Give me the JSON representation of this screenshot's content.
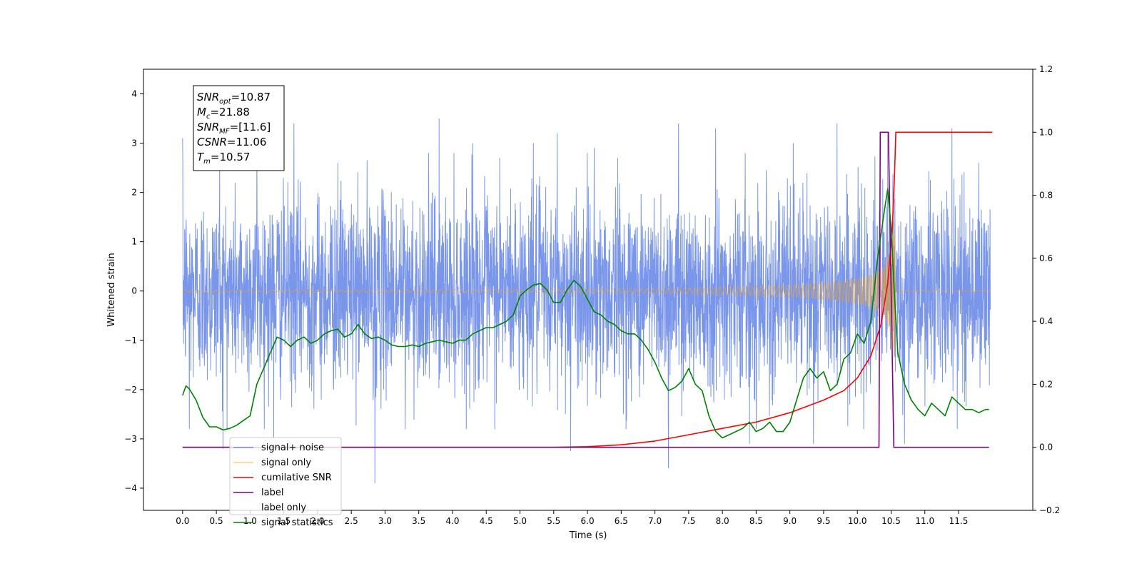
{
  "chart_data": {
    "type": "line",
    "xlabel": "Time (s)",
    "ylabel": "Whitened strain",
    "y2label": "",
    "xlim": [
      -0.58,
      12.6
    ],
    "ylim": [
      -4.45,
      4.5
    ],
    "y2lim": [
      -0.2,
      1.2
    ],
    "xticks": [
      "0.0",
      "0.5",
      "1.0",
      "1.5",
      "2.0",
      "2.5",
      "3.0",
      "3.5",
      "4.0",
      "4.5",
      "5.0",
      "5.5",
      "6.0",
      "6.5",
      "7.0",
      "7.5",
      "8.0",
      "8.5",
      "9.0",
      "9.5",
      "10.0",
      "10.5",
      "11.0",
      "11.5"
    ],
    "yticks": [
      "4",
      "3",
      "2",
      "1",
      "0",
      "−1",
      "−2",
      "−3",
      "−4"
    ],
    "y2ticks": [
      "1.2",
      "1.0",
      "0.8",
      "0.6",
      "0.4",
      "0.2",
      "0.0",
      "−0.2"
    ],
    "colors": {
      "noise": "#4169e1",
      "signal": "#ffa500",
      "cum_snr": "#ff0000",
      "label": "#800080",
      "stats": "#008000"
    },
    "series": [
      {
        "name": "signal+ noise",
        "axis": "left",
        "note": "dense noise trace, approx amplitude ±2.3, spikes listed",
        "spikes": [
          {
            "x": 0.0,
            "y": 3.1
          },
          {
            "x": 0.1,
            "y": -2.8
          },
          {
            "x": 0.55,
            "y": 2.8
          },
          {
            "x": 0.6,
            "y": -3.2
          },
          {
            "x": 1.1,
            "y": 3.0
          },
          {
            "x": 1.35,
            "y": -3.0
          },
          {
            "x": 1.65,
            "y": 3.4
          },
          {
            "x": 2.3,
            "y": 2.6
          },
          {
            "x": 2.85,
            "y": -3.9
          },
          {
            "x": 3.3,
            "y": -2.8
          },
          {
            "x": 3.8,
            "y": 3.5
          },
          {
            "x": 4.3,
            "y": 3.0
          },
          {
            "x": 4.7,
            "y": 2.7
          },
          {
            "x": 5.2,
            "y": 3.0
          },
          {
            "x": 5.55,
            "y": 3.2
          },
          {
            "x": 5.75,
            "y": -3.25
          },
          {
            "x": 6.1,
            "y": 2.9
          },
          {
            "x": 6.45,
            "y": 2.7
          },
          {
            "x": 7.2,
            "y": -3.6
          },
          {
            "x": 7.35,
            "y": 3.4
          },
          {
            "x": 7.9,
            "y": 3.3
          },
          {
            "x": 8.4,
            "y": -3.1
          },
          {
            "x": 9.05,
            "y": 3.0
          },
          {
            "x": 9.35,
            "y": -3.1
          },
          {
            "x": 9.7,
            "y": 3.4
          },
          {
            "x": 10.45,
            "y": 3.2
          },
          {
            "x": 10.7,
            "y": -3.1
          },
          {
            "x": 11.4,
            "y": 3.3
          },
          {
            "x": 11.8,
            "y": 2.6
          }
        ]
      },
      {
        "name": "signal only",
        "axis": "left",
        "note": "chirp, envelope amplitude vs time",
        "envelope": [
          [
            0.0,
            0.02
          ],
          [
            5.0,
            0.03
          ],
          [
            7.0,
            0.05
          ],
          [
            9.0,
            0.12
          ],
          [
            9.5,
            0.17
          ],
          [
            10.0,
            0.25
          ],
          [
            10.2,
            0.33
          ],
          [
            10.4,
            0.5
          ],
          [
            10.5,
            0.9
          ],
          [
            10.55,
            1.4
          ],
          [
            10.57,
            0.0
          ],
          [
            12.0,
            0.0
          ]
        ]
      },
      {
        "name": "cumilative SNR",
        "axis": "right",
        "points": [
          [
            0.0,
            0.0
          ],
          [
            5.0,
            0.0
          ],
          [
            5.5,
            0.0
          ],
          [
            6.0,
            0.002
          ],
          [
            6.5,
            0.008
          ],
          [
            7.0,
            0.02
          ],
          [
            7.5,
            0.04
          ],
          [
            8.0,
            0.06
          ],
          [
            8.5,
            0.08
          ],
          [
            9.0,
            0.11
          ],
          [
            9.5,
            0.15
          ],
          [
            9.8,
            0.18
          ],
          [
            10.0,
            0.22
          ],
          [
            10.2,
            0.29
          ],
          [
            10.35,
            0.39
          ],
          [
            10.45,
            0.52
          ],
          [
            10.52,
            0.7
          ],
          [
            10.55,
            0.86
          ],
          [
            10.57,
            1.0
          ],
          [
            12.0,
            1.0
          ]
        ]
      },
      {
        "name": "label",
        "axis": "right",
        "points": [
          [
            0.0,
            0.0
          ],
          [
            10.32,
            0.0
          ],
          [
            10.34,
            1.0
          ],
          [
            10.46,
            1.0
          ],
          [
            10.54,
            0.0
          ],
          [
            11.95,
            0.0
          ]
        ]
      },
      {
        "name": "label only",
        "axis": "right",
        "hidden": true,
        "points": []
      },
      {
        "name": "signal statistics",
        "axis": "right",
        "points": [
          [
            0.0,
            0.165
          ],
          [
            0.05,
            0.195
          ],
          [
            0.1,
            0.185
          ],
          [
            0.2,
            0.15
          ],
          [
            0.3,
            0.095
          ],
          [
            0.4,
            0.065
          ],
          [
            0.5,
            0.065
          ],
          [
            0.6,
            0.055
          ],
          [
            0.7,
            0.06
          ],
          [
            0.8,
            0.07
          ],
          [
            0.9,
            0.085
          ],
          [
            1.0,
            0.1
          ],
          [
            1.1,
            0.2
          ],
          [
            1.2,
            0.25
          ],
          [
            1.3,
            0.3
          ],
          [
            1.4,
            0.35
          ],
          [
            1.5,
            0.34
          ],
          [
            1.6,
            0.32
          ],
          [
            1.7,
            0.34
          ],
          [
            1.8,
            0.35
          ],
          [
            1.9,
            0.33
          ],
          [
            2.0,
            0.34
          ],
          [
            2.1,
            0.36
          ],
          [
            2.2,
            0.37
          ],
          [
            2.3,
            0.375
          ],
          [
            2.4,
            0.35
          ],
          [
            2.5,
            0.36
          ],
          [
            2.6,
            0.39
          ],
          [
            2.7,
            0.36
          ],
          [
            2.8,
            0.345
          ],
          [
            2.9,
            0.35
          ],
          [
            3.0,
            0.34
          ],
          [
            3.1,
            0.325
          ],
          [
            3.2,
            0.32
          ],
          [
            3.3,
            0.32
          ],
          [
            3.4,
            0.325
          ],
          [
            3.5,
            0.32
          ],
          [
            3.6,
            0.33
          ],
          [
            3.7,
            0.335
          ],
          [
            3.8,
            0.34
          ],
          [
            3.9,
            0.335
          ],
          [
            4.0,
            0.33
          ],
          [
            4.1,
            0.34
          ],
          [
            4.2,
            0.34
          ],
          [
            4.3,
            0.36
          ],
          [
            4.4,
            0.37
          ],
          [
            4.5,
            0.38
          ],
          [
            4.6,
            0.38
          ],
          [
            4.7,
            0.39
          ],
          [
            4.8,
            0.4
          ],
          [
            4.9,
            0.42
          ],
          [
            5.0,
            0.48
          ],
          [
            5.1,
            0.5
          ],
          [
            5.2,
            0.515
          ],
          [
            5.3,
            0.52
          ],
          [
            5.4,
            0.5
          ],
          [
            5.5,
            0.46
          ],
          [
            5.6,
            0.46
          ],
          [
            5.7,
            0.5
          ],
          [
            5.8,
            0.53
          ],
          [
            5.9,
            0.51
          ],
          [
            6.0,
            0.47
          ],
          [
            6.1,
            0.43
          ],
          [
            6.2,
            0.42
          ],
          [
            6.3,
            0.4
          ],
          [
            6.4,
            0.39
          ],
          [
            6.5,
            0.37
          ],
          [
            6.6,
            0.36
          ],
          [
            6.7,
            0.36
          ],
          [
            6.8,
            0.34
          ],
          [
            6.9,
            0.31
          ],
          [
            7.0,
            0.27
          ],
          [
            7.1,
            0.22
          ],
          [
            7.2,
            0.18
          ],
          [
            7.3,
            0.19
          ],
          [
            7.4,
            0.21
          ],
          [
            7.5,
            0.25
          ],
          [
            7.6,
            0.2
          ],
          [
            7.7,
            0.18
          ],
          [
            7.8,
            0.1
          ],
          [
            7.9,
            0.05
          ],
          [
            8.0,
            0.03
          ],
          [
            8.1,
            0.04
          ],
          [
            8.2,
            0.05
          ],
          [
            8.3,
            0.06
          ],
          [
            8.4,
            0.08
          ],
          [
            8.5,
            0.05
          ],
          [
            8.6,
            0.06
          ],
          [
            8.7,
            0.08
          ],
          [
            8.8,
            0.05
          ],
          [
            8.9,
            0.05
          ],
          [
            9.0,
            0.08
          ],
          [
            9.1,
            0.15
          ],
          [
            9.2,
            0.22
          ],
          [
            9.3,
            0.25
          ],
          [
            9.4,
            0.22
          ],
          [
            9.5,
            0.24
          ],
          [
            9.6,
            0.18
          ],
          [
            9.7,
            0.2
          ],
          [
            9.8,
            0.28
          ],
          [
            9.9,
            0.3
          ],
          [
            10.0,
            0.36
          ],
          [
            10.1,
            0.33
          ],
          [
            10.2,
            0.4
          ],
          [
            10.3,
            0.6
          ],
          [
            10.4,
            0.75
          ],
          [
            10.45,
            0.82
          ],
          [
            10.5,
            0.7
          ],
          [
            10.55,
            0.48
          ],
          [
            10.6,
            0.3
          ],
          [
            10.7,
            0.2
          ],
          [
            10.8,
            0.15
          ],
          [
            10.9,
            0.12
          ],
          [
            11.0,
            0.1
          ],
          [
            11.1,
            0.14
          ],
          [
            11.2,
            0.12
          ],
          [
            11.3,
            0.1
          ],
          [
            11.4,
            0.16
          ],
          [
            11.5,
            0.14
          ],
          [
            11.6,
            0.12
          ],
          [
            11.7,
            0.12
          ],
          [
            11.8,
            0.11
          ],
          [
            11.9,
            0.12
          ],
          [
            11.95,
            0.12
          ]
        ]
      }
    ],
    "legend": {
      "placement": "lower-left",
      "entries": [
        {
          "label": "signal+ noise",
          "color": "#4169e1",
          "alpha": 0.7
        },
        {
          "label": "signal only",
          "color": "#ffa500",
          "alpha": 0.5
        },
        {
          "label": "cumilative SNR",
          "color": "#ff0000",
          "alpha": 1.0
        },
        {
          "label": "label",
          "color": "#800080",
          "alpha": 1.0
        },
        {
          "label": "label only",
          "color": "#800080",
          "alpha": 0.0
        },
        {
          "label": "signal statistics",
          "color": "#008000",
          "alpha": 1.0
        }
      ]
    },
    "annotation": {
      "placement": "top-left",
      "lines": [
        {
          "main": "SNR",
          "sub": "opt",
          "value": "=10.87"
        },
        {
          "main": "M",
          "sub": "c",
          "value": "=21.88"
        },
        {
          "main": "SNR",
          "sub": "MF",
          "value": "=[11.6]"
        },
        {
          "main": "CSNR",
          "sub": "",
          "value": "=11.06"
        },
        {
          "main": "T",
          "sub": "m",
          "value": "=10.57"
        }
      ]
    }
  }
}
